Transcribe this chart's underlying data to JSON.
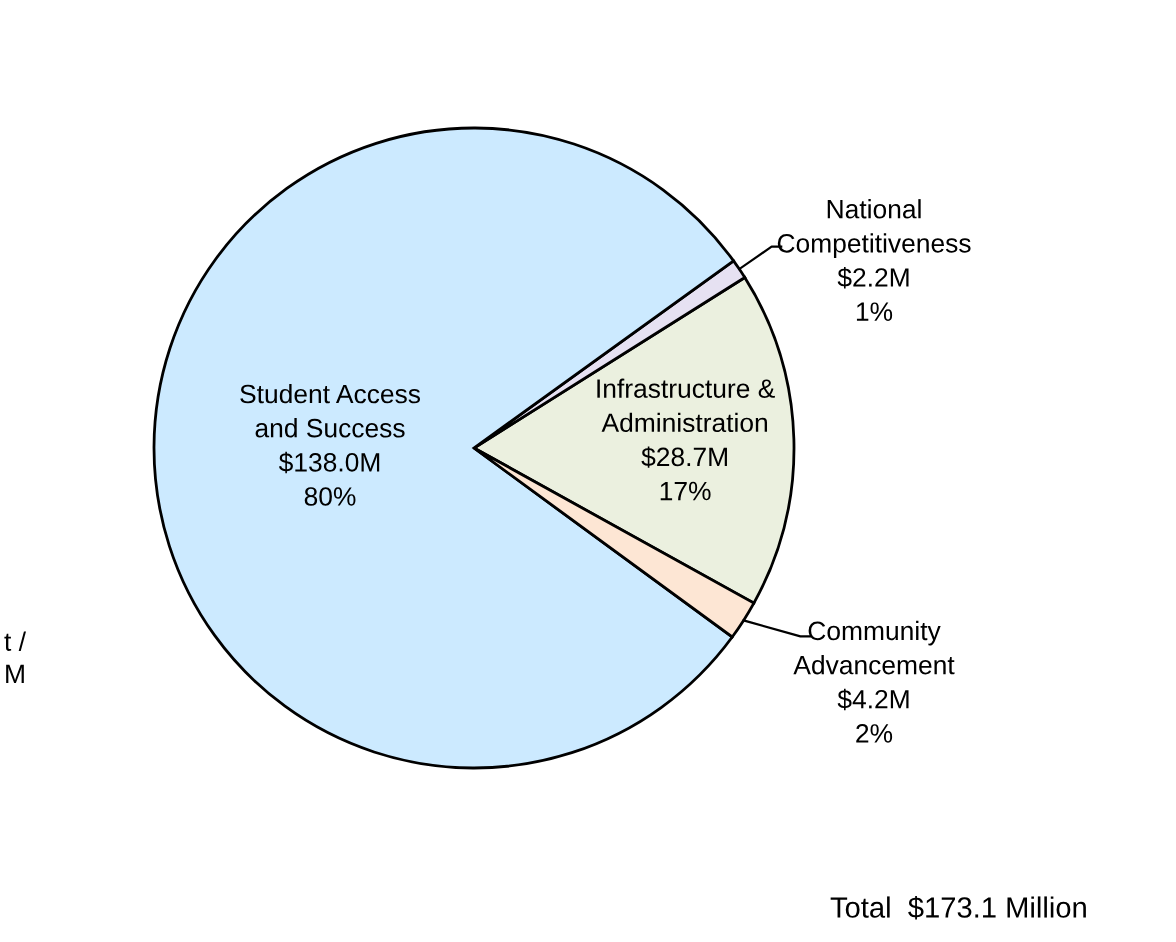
{
  "chart_data": {
    "type": "pie",
    "categories": [
      "Infrastructure &\nAdministration\n$28.7M",
      "National\nCompetitiveness\n$2.2M",
      "Student Access\nand Success\n$138.0M",
      "Community\nAdvancement\n$4.2M"
    ],
    "values": [
      17,
      1,
      80,
      2
    ],
    "value_labels": [
      "17%",
      "1%",
      "80%",
      "2%"
    ],
    "colors": [
      "#ebf0df",
      "#e6e1f2",
      "#cceaff",
      "#fde6d4"
    ],
    "annotations": [
      "t /\nM",
      "Total  $173.1 Million"
    ]
  }
}
